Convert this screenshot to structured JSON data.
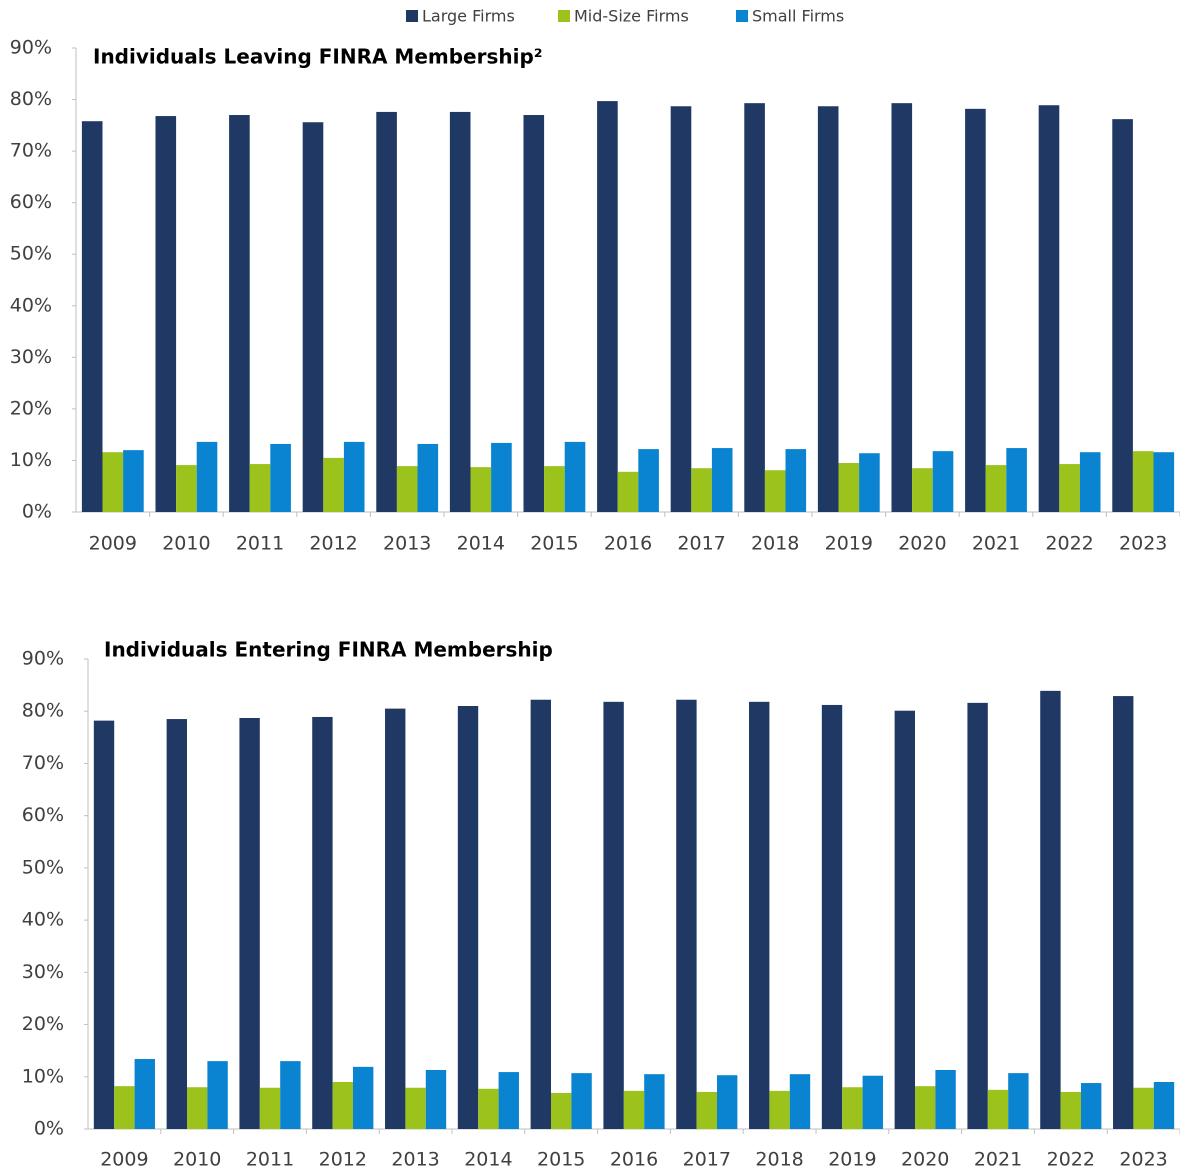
{
  "chart_data": [
    {
      "type": "bar",
      "title": "Individuals Leaving FINRA Membership²",
      "categories": [
        "2009",
        "2010",
        "2011",
        "2012",
        "2013",
        "2014",
        "2015",
        "2016",
        "2017",
        "2018",
        "2019",
        "2020",
        "2021",
        "2022",
        "2023"
      ],
      "series": [
        {
          "name": "Large Firms",
          "color": "#203864",
          "values": [
            75.8,
            76.8,
            77.0,
            75.6,
            77.6,
            77.6,
            77.0,
            79.7,
            78.7,
            79.3,
            78.7,
            79.3,
            78.2,
            78.9,
            76.2
          ]
        },
        {
          "name": "Mid-Size Firms",
          "color": "#9bc31c",
          "values": [
            11.6,
            9.1,
            9.3,
            10.5,
            8.9,
            8.7,
            8.9,
            7.8,
            8.5,
            8.1,
            9.5,
            8.5,
            9.1,
            9.3,
            11.8
          ]
        },
        {
          "name": "Small Firms",
          "color": "#0a84d0",
          "values": [
            12.0,
            13.6,
            13.2,
            13.6,
            13.2,
            13.4,
            13.6,
            12.2,
            12.4,
            12.2,
            11.4,
            11.8,
            12.4,
            11.6,
            11.6
          ]
        }
      ],
      "ylim": [
        0,
        90
      ],
      "yticks": [
        {
          "value": 0,
          "label": "0%"
        },
        {
          "value": 10,
          "label": "10%"
        },
        {
          "value": 20,
          "label": "20%"
        },
        {
          "value": 30,
          "label": "30%"
        },
        {
          "value": 40,
          "label": "40%"
        },
        {
          "value": 50,
          "label": "50%"
        },
        {
          "value": 60,
          "label": "60%"
        },
        {
          "value": 70,
          "label": "70%"
        },
        {
          "value": 80,
          "label": "80%"
        },
        {
          "value": 90,
          "label": "90%"
        }
      ],
      "legend": "top"
    },
    {
      "type": "bar",
      "title": "Individuals Entering FINRA Membership",
      "categories": [
        "2009",
        "2010",
        "2011",
        "2012",
        "2013",
        "2014",
        "2015",
        "2016",
        "2017",
        "2018",
        "2019",
        "2020",
        "2021",
        "2022",
        "2023"
      ],
      "series": [
        {
          "color": "#203864",
          "values": [
            78.2,
            78.5,
            78.7,
            78.9,
            80.5,
            81.0,
            82.2,
            81.8,
            82.2,
            81.8,
            81.2,
            80.1,
            81.6,
            83.9,
            82.9
          ]
        },
        {
          "color": "#9bc31c",
          "values": [
            8.2,
            8.0,
            7.9,
            9.0,
            7.9,
            7.7,
            6.9,
            7.3,
            7.1,
            7.3,
            8.0,
            8.2,
            7.5,
            7.1,
            7.9
          ]
        },
        {
          "color": "#0a84d0",
          "values": [
            13.4,
            13.0,
            13.0,
            11.9,
            11.3,
            10.9,
            10.7,
            10.5,
            10.3,
            10.5,
            10.2,
            11.3,
            10.7,
            8.8,
            9.0
          ]
        }
      ],
      "ylim": [
        0,
        90
      ],
      "yticks": [
        {
          "value": 0,
          "label": "0%"
        },
        {
          "value": 10,
          "label": "10%"
        },
        {
          "value": 20,
          "label": "20%"
        },
        {
          "value": 30,
          "label": "30%"
        },
        {
          "value": 40,
          "label": "40%"
        },
        {
          "value": 50,
          "label": "50%"
        },
        {
          "value": 60,
          "label": "60%"
        },
        {
          "value": 70,
          "label": "70%"
        },
        {
          "value": 80,
          "label": "80%"
        },
        {
          "value": 90,
          "label": "90%"
        }
      ]
    }
  ]
}
